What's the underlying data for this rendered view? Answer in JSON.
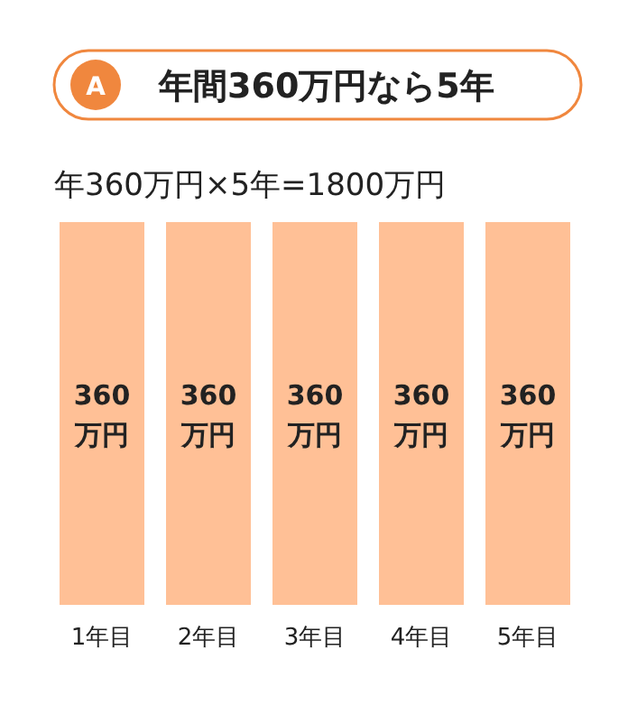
{
  "chart_data": {
    "type": "bar",
    "title": "年間360万円なら5年",
    "subtitle": "年360万円×5年=1800万円",
    "annotations": [
      "A"
    ],
    "categories": [
      "1年目",
      "2年目",
      "3年目",
      "4年目",
      "5年目"
    ],
    "values": [
      360,
      360,
      360,
      360,
      360
    ],
    "value_labels": [
      "360万円",
      "360万円",
      "360万円",
      "360万円",
      "360万円"
    ],
    "color": "#ffc096"
  }
}
